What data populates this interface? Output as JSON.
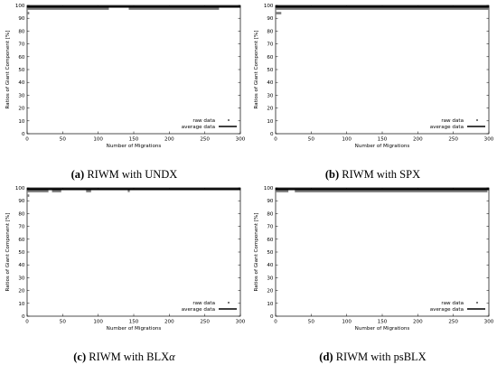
{
  "chart_data": [
    {
      "type": "scatter",
      "caption_letter": "(a)",
      "caption_text": "RIWM with UNDX",
      "xlabel": "Number of Migrations",
      "ylabel": "Ratios of Giant Component [%]",
      "xlim": [
        0,
        300
      ],
      "ylim": [
        0,
        100
      ],
      "xticks": [
        0,
        50,
        100,
        150,
        200,
        250,
        300
      ],
      "yticks": [
        0,
        10,
        20,
        30,
        40,
        50,
        60,
        70,
        80,
        90,
        100
      ],
      "legend_position": "bottom-right",
      "legend": [
        "raw data",
        "average data"
      ],
      "average": 99,
      "raw_segments": [
        {
          "x": [
            0,
            115
          ],
          "y": 97.5
        },
        {
          "x": [
            143,
            270
          ],
          "y": 97.5
        },
        {
          "x": [
            0,
            3
          ],
          "y": 94
        }
      ],
      "raw_points": []
    },
    {
      "type": "scatter",
      "caption_letter": "(b)",
      "caption_text": "RIWM with SPX",
      "xlabel": "Number of Migrations",
      "ylabel": "Ratios of Giant Component [%]",
      "xlim": [
        0,
        300
      ],
      "ylim": [
        0,
        100
      ],
      "xticks": [
        0,
        50,
        100,
        150,
        200,
        250,
        300
      ],
      "yticks": [
        0,
        10,
        20,
        30,
        40,
        50,
        60,
        70,
        80,
        90,
        100
      ],
      "legend_position": "bottom-right",
      "legend": [
        "raw data",
        "average data"
      ],
      "average": 99,
      "raw_segments": [
        {
          "x": [
            0,
            300
          ],
          "y": 97.5
        },
        {
          "x": [
            0,
            8
          ],
          "y": 94
        }
      ],
      "raw_points": []
    },
    {
      "type": "scatter",
      "caption_letter": "(c)",
      "caption_text": "RIWM with BLX",
      "caption_symbol": "α",
      "xlabel": "Number of Migrations",
      "ylabel": "Ratios of Giant Component [%]",
      "xlim": [
        0,
        300
      ],
      "ylim": [
        0,
        100
      ],
      "xticks": [
        0,
        50,
        100,
        150,
        200,
        250,
        300
      ],
      "yticks": [
        0,
        10,
        20,
        30,
        40,
        50,
        60,
        70,
        80,
        90,
        100
      ],
      "legend_position": "bottom-right",
      "legend": [
        "raw data",
        "average data"
      ],
      "average": 99,
      "raw_segments": [
        {
          "x": [
            0,
            30
          ],
          "y": 97.5
        },
        {
          "x": [
            35,
            48
          ],
          "y": 97.5
        },
        {
          "x": [
            83,
            90
          ],
          "y": 97.5
        },
        {
          "x": [
            0,
            3
          ],
          "y": 94
        }
      ],
      "raw_points": [
        {
          "x": 143,
          "y": 97.5
        }
      ]
    },
    {
      "type": "scatter",
      "caption_letter": "(d)",
      "caption_text": "RIWM with psBLX",
      "xlabel": "Number of Migrations",
      "ylabel": "Ratios of Giant Component [%]",
      "xlim": [
        0,
        300
      ],
      "ylim": [
        0,
        100
      ],
      "xticks": [
        0,
        50,
        100,
        150,
        200,
        250,
        300
      ],
      "yticks": [
        0,
        10,
        20,
        30,
        40,
        50,
        60,
        70,
        80,
        90,
        100
      ],
      "legend_position": "bottom-right",
      "legend": [
        "raw data",
        "average data"
      ],
      "average": 99,
      "raw_segments": [
        {
          "x": [
            0,
            18
          ],
          "y": 97.5
        },
        {
          "x": [
            27,
            298
          ],
          "y": 97.5
        }
      ],
      "raw_points": []
    }
  ]
}
